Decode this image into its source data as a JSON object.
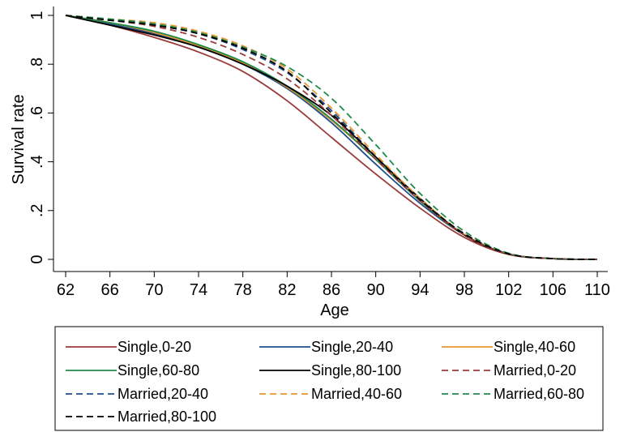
{
  "chart_data": {
    "type": "line",
    "xlabel": "Age",
    "ylabel": "Survival rate",
    "xlim": [
      62,
      110
    ],
    "ylim": [
      0,
      1
    ],
    "xticks": [
      "62",
      "66",
      "70",
      "74",
      "78",
      "82",
      "86",
      "90",
      "94",
      "98",
      "102",
      "106",
      "110"
    ],
    "yticks": [
      "0",
      ".2",
      ".4",
      ".6",
      ".8",
      "1"
    ],
    "grid": false,
    "legend_position": "bottom",
    "x": [
      62,
      66,
      70,
      74,
      78,
      82,
      86,
      90,
      94,
      98,
      102,
      106,
      110
    ],
    "series": [
      {
        "name": "Single,0-20",
        "color": "#9b3a3a",
        "dash": "solid",
        "values": [
          1.0,
          0.96,
          0.91,
          0.85,
          0.77,
          0.65,
          0.5,
          0.35,
          0.21,
          0.09,
          0.02,
          0.003,
          0.0
        ]
      },
      {
        "name": "Single,20-40",
        "color": "#1f4e8c",
        "dash": "solid",
        "values": [
          1.0,
          0.965,
          0.925,
          0.87,
          0.8,
          0.7,
          0.56,
          0.39,
          0.23,
          0.1,
          0.022,
          0.003,
          0.0
        ]
      },
      {
        "name": "Single,40-60",
        "color": "#e8962f",
        "dash": "solid",
        "values": [
          1.0,
          0.97,
          0.93,
          0.875,
          0.805,
          0.705,
          0.57,
          0.41,
          0.24,
          0.1,
          0.022,
          0.003,
          0.0
        ]
      },
      {
        "name": "Single,60-80",
        "color": "#1e8a4a",
        "dash": "solid",
        "values": [
          1.0,
          0.97,
          0.935,
          0.88,
          0.81,
          0.71,
          0.575,
          0.41,
          0.24,
          0.1,
          0.022,
          0.003,
          0.0
        ]
      },
      {
        "name": "Single,80-100",
        "color": "#000000",
        "dash": "solid",
        "values": [
          1.0,
          0.96,
          0.92,
          0.87,
          0.8,
          0.71,
          0.59,
          0.42,
          0.25,
          0.1,
          0.022,
          0.003,
          0.0
        ]
      },
      {
        "name": "Married,0-20",
        "color": "#9b3a3a",
        "dash": "dashed",
        "values": [
          1.0,
          0.98,
          0.955,
          0.91,
          0.84,
          0.74,
          0.59,
          0.41,
          0.24,
          0.1,
          0.022,
          0.003,
          0.0
        ]
      },
      {
        "name": "Married,20-40",
        "color": "#1f4e8c",
        "dash": "dashed",
        "values": [
          1.0,
          0.98,
          0.96,
          0.925,
          0.86,
          0.765,
          0.61,
          0.42,
          0.245,
          0.105,
          0.023,
          0.003,
          0.0
        ]
      },
      {
        "name": "Married,40-60",
        "color": "#e8962f",
        "dash": "dashed",
        "values": [
          1.0,
          0.985,
          0.97,
          0.935,
          0.875,
          0.78,
          0.62,
          0.43,
          0.25,
          0.105,
          0.023,
          0.003,
          0.0
        ]
      },
      {
        "name": "Married,60-80",
        "color": "#1e8a4a",
        "dash": "dashed",
        "values": [
          1.0,
          0.985,
          0.965,
          0.93,
          0.87,
          0.79,
          0.66,
          0.47,
          0.27,
          0.115,
          0.025,
          0.003,
          0.0
        ]
      },
      {
        "name": "Married,80-100",
        "color": "#000000",
        "dash": "dashed",
        "values": [
          1.0,
          0.98,
          0.96,
          0.925,
          0.865,
          0.77,
          0.6,
          0.42,
          0.245,
          0.105,
          0.023,
          0.003,
          0.0
        ]
      }
    ]
  }
}
